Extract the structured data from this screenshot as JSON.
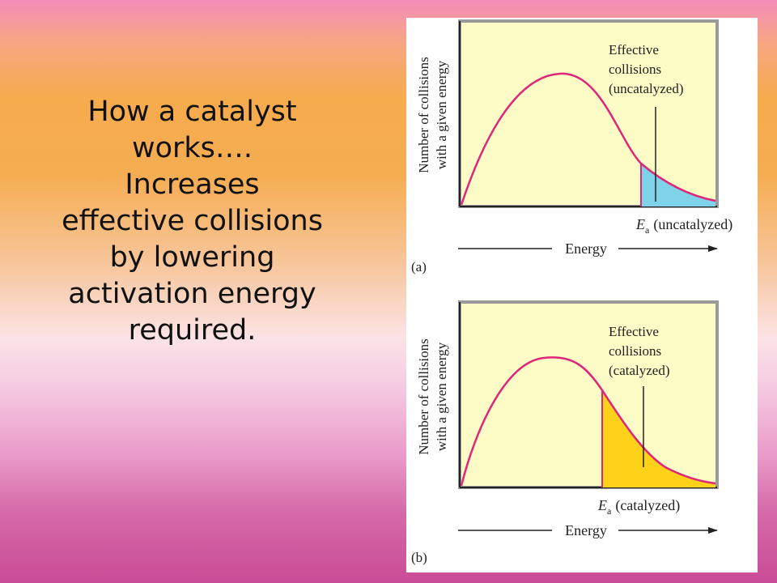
{
  "slide": {
    "lines": [
      "How a catalyst",
      "works….",
      "Increases",
      "effective collisions",
      "by lowering",
      "activation energy",
      "required."
    ]
  },
  "colors": {
    "curve": "#e0267a",
    "plot_bg": "#fdfbc6",
    "uncatalyzed_fill": "#7fd3e8",
    "catalyzed_fill": "#ffd21a"
  },
  "figure": {
    "y_axis_line1": "Number of collisions",
    "y_axis_line2": "with a given energy",
    "x_axis": "Energy",
    "panels": [
      {
        "id": "a",
        "panel_label": "(a)",
        "annotation": [
          "Effective",
          "collisions",
          "(uncatalyzed)"
        ],
        "ea_symbol": "E",
        "ea_subscript": "a",
        "ea_suffix": "(uncatalyzed)"
      },
      {
        "id": "b",
        "panel_label": "(b)",
        "annotation": [
          "Effective",
          "collisions",
          "(catalyzed)"
        ],
        "ea_symbol": "E",
        "ea_subscript": "a",
        "ea_suffix": "(catalyzed)"
      }
    ]
  }
}
